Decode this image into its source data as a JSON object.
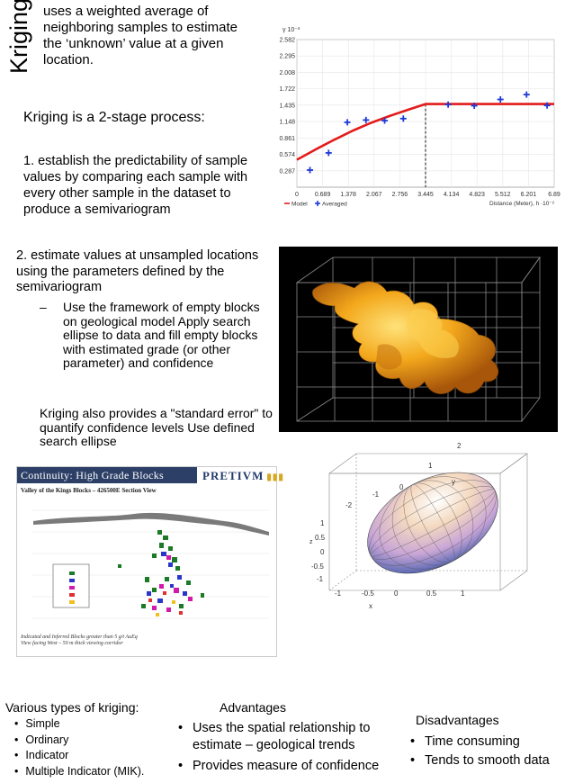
{
  "vertical_title": "Kriging",
  "intro": "uses a weighted average of neighboring samples to estimate the ‘unknown’ value at a given location.",
  "stage_title": "Kriging is a 2-stage process:",
  "step1": " 1. establish the predictability of sample values by comparing each sample with every other sample in the dataset to produce a semivariogram",
  "step2": " 2. estimate values at unsampled locations using the parameters defined by the semivariogram",
  "step2_dash": "–",
  "step2_sub": "Use the framework of empty blocks on geological model Apply search ellipse to data and fill empty blocks with estimated grade (or other parameter) and confidence",
  "std_err": "Kriging also provides a \"standard error\" to quantify confidence levels Use defined search ellipse",
  "types": {
    "title": "Various types of kriging:",
    "items": [
      "Simple",
      "Ordinary",
      "Indicator",
      "Multiple Indicator (MIK)."
    ]
  },
  "advantages": {
    "title": "Advantages",
    "items": [
      "Uses the spatial relationship to estimate – geological trends",
      "Provides measure of confidence"
    ]
  },
  "disadvantages": {
    "title": "Disadvantages",
    "items": [
      "Time consuming",
      "Tends to smooth data"
    ]
  },
  "section_figure": {
    "banner": "Continuity: High Grade Blocks",
    "brand": "PRETIVM",
    "subtitle": "Valley of the Kings  Blocks – 426500E Section View",
    "footer_line1": "Indicated and Inferred Blocks greater than 5 g/t AuEq",
    "footer_line2": "View facing West – 50 m thick viewing corridor"
  },
  "chart_data": {
    "type": "scatter",
    "yaxis_label": "γ",
    "yaxis_exponent": "10⁻³",
    "y_ticks": [
      "2.582",
      "2.295",
      "2.008",
      "1.722",
      "1.435",
      "1.148",
      "0.861",
      "0.574",
      "0.287"
    ],
    "x_ticks": [
      "0",
      "0.689",
      "1.378",
      "2.067",
      "2.756",
      "3.445",
      "4.134",
      "4.823",
      "5.512",
      "6.201",
      "6.89"
    ],
    "xlabel": "Distance (Meter), h ·10⁻²",
    "xlim": [
      0,
      6.89
    ],
    "ylim": [
      0,
      2.582
    ],
    "series": [
      {
        "name": "Model",
        "color": "#e31b1b",
        "x": [
          0,
          0.5,
          1.0,
          1.5,
          2.0,
          2.5,
          3.0,
          3.445,
          4.134,
          4.823,
          5.512,
          6.201,
          6.89
        ],
        "y": [
          0.48,
          0.66,
          0.83,
          0.99,
          1.13,
          1.25,
          1.36,
          1.455,
          1.455,
          1.455,
          1.455,
          1.455,
          1.455
        ]
      },
      {
        "name": "Averaged",
        "color": "#1e3ad6",
        "x": [
          0.35,
          0.85,
          1.35,
          1.85,
          2.35,
          2.85,
          4.05,
          4.75,
          5.45,
          6.15,
          6.7
        ],
        "y": [
          0.3,
          0.6,
          1.135,
          1.175,
          1.165,
          1.2,
          1.445,
          1.425,
          1.535,
          1.62,
          1.43
        ]
      }
    ],
    "range_marker_x": 3.445
  }
}
